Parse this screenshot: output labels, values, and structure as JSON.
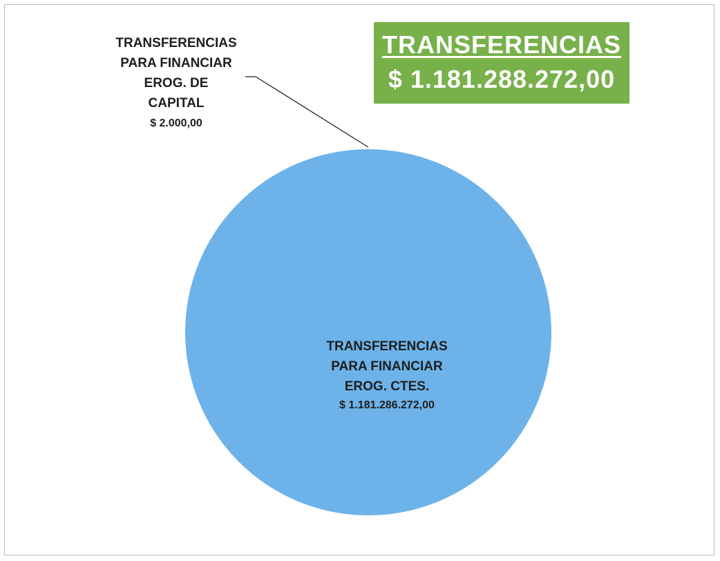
{
  "chart_data": {
    "type": "pie",
    "title": "TRANSFERENCIAS",
    "subtitle": "$ 1.181.288.272,00",
    "categories": [
      "TRANSFERENCIAS\nPARA FINANCIAR\nEROG. DE\nCAPITAL",
      "TRANSFERENCIAS\nPARA FINANCIAR\nEROG. CTES."
    ],
    "values": [
      2000,
      1181286272
    ],
    "value_labels": [
      "$ 2.000,00",
      "$ 1.181.286.272,00"
    ],
    "colors": [
      "#6db3e9",
      "#6db3e9"
    ]
  }
}
